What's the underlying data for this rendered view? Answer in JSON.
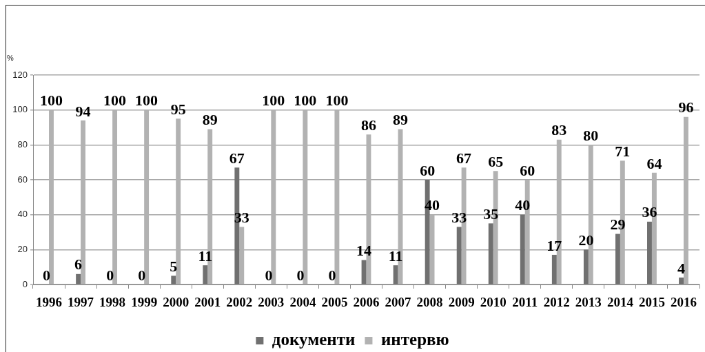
{
  "chart_data": {
    "type": "bar",
    "ylabel": "%",
    "categories": [
      "1996",
      "1997",
      "1998",
      "1999",
      "2000",
      "2001",
      "2002",
      "2003",
      "2004",
      "2005",
      "2006",
      "2007",
      "2008",
      "2009",
      "2010",
      "2011",
      "2012",
      "2013",
      "2014",
      "2015",
      "2016"
    ],
    "series": [
      {
        "name": "документи",
        "color": "#707070",
        "values": [
          0,
          6,
          0,
          0,
          5,
          11,
          67,
          0,
          0,
          0,
          14,
          11,
          60,
          33,
          35,
          40,
          17,
          20,
          29,
          36,
          4
        ]
      },
      {
        "name": "интервю",
        "color": "#b2b2b2",
        "values": [
          100,
          94,
          100,
          100,
          95,
          89,
          33,
          100,
          100,
          100,
          86,
          89,
          40,
          67,
          65,
          60,
          83,
          80,
          71,
          64,
          96
        ]
      }
    ],
    "ylim": [
      0,
      120
    ],
    "yticks": [
      0,
      20,
      40,
      60,
      80,
      100,
      120
    ],
    "grid": "y",
    "legend": "bottom",
    "data_labels": true
  }
}
